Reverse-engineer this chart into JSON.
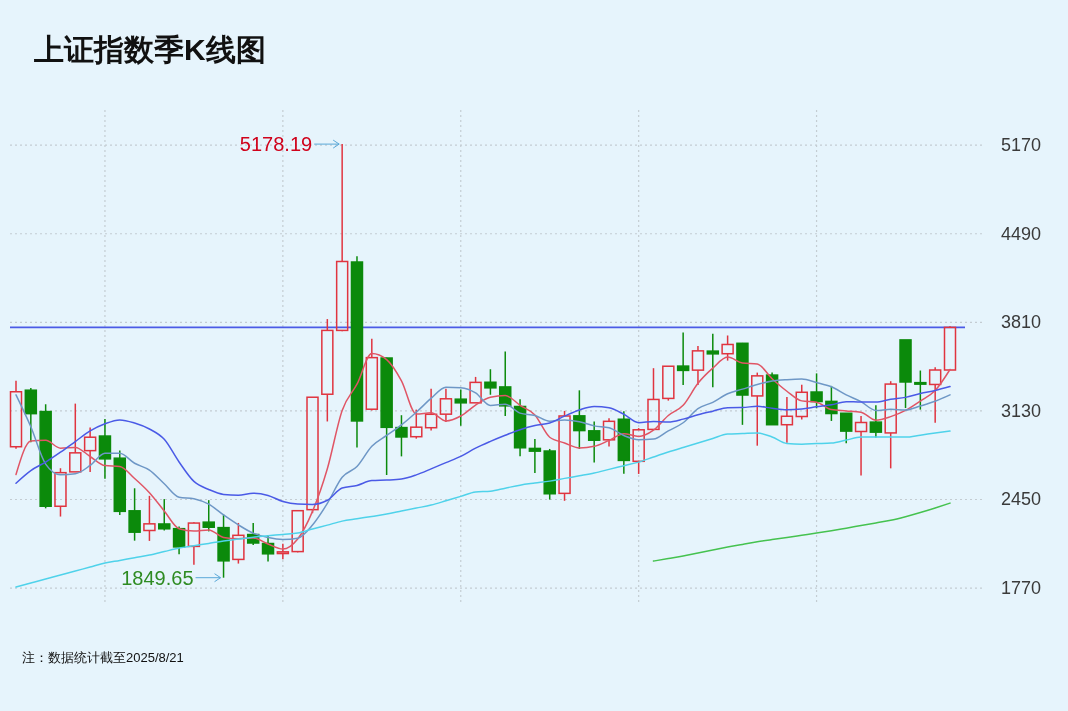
{
  "chart_data": {
    "type": "candlestick",
    "title": "上证指数季K线图",
    "categories": [
      null,
      null,
      null,
      null,
      null,
      null,
      null,
      null,
      null,
      null,
      null,
      null,
      null,
      null,
      null,
      null,
      null,
      null,
      null,
      null,
      null,
      null,
      null,
      null,
      null,
      null,
      null,
      null,
      null,
      null,
      null,
      null,
      null,
      null,
      null,
      null,
      null,
      null,
      null,
      null,
      null,
      null,
      null,
      null,
      null,
      null,
      null,
      null,
      null,
      null,
      null,
      null,
      null,
      null,
      null,
      null,
      null,
      null,
      null,
      null,
      null,
      null,
      null,
      null
    ],
    "ohlc": [
      [
        2855,
        3361,
        2840,
        3277
      ],
      [
        3289,
        3306,
        2890,
        3109
      ],
      [
        3125,
        3181,
        2382,
        2398
      ],
      [
        2398,
        2690,
        2319,
        2656
      ],
      [
        2662,
        3186,
        2662,
        2808
      ],
      [
        2825,
        3002,
        2661,
        2928
      ],
      [
        2937,
        3067,
        2610,
        2762
      ],
      [
        2767,
        2826,
        2331,
        2359
      ],
      [
        2363,
        2536,
        2134,
        2199
      ],
      [
        2212,
        2478,
        2132,
        2263
      ],
      [
        2262,
        2453,
        2212,
        2225
      ],
      [
        2226,
        2243,
        2029,
        2086
      ],
      [
        2090,
        2275,
        1949,
        2269
      ],
      [
        2276,
        2445,
        2205,
        2237
      ],
      [
        2234,
        2334,
        1849.65,
        1979
      ],
      [
        1990,
        2270,
        1958,
        2175
      ],
      [
        2181,
        2270,
        2100,
        2116
      ],
      [
        2112,
        2178,
        1974,
        2033
      ],
      [
        2035,
        2110,
        1991,
        2048
      ],
      [
        2050,
        2368,
        2044,
        2364
      ],
      [
        2372,
        3235,
        2345,
        3235
      ],
      [
        3258,
        3835,
        3049,
        3748
      ],
      [
        3748,
        5178.19,
        3742,
        4277
      ],
      [
        4273,
        4317,
        2850,
        3053
      ],
      [
        3143,
        3684,
        3133,
        3539
      ],
      [
        3536,
        3539,
        2638,
        3004
      ],
      [
        3002,
        3097,
        2781,
        2930
      ],
      [
        2932,
        3140,
        2917,
        3005
      ],
      [
        3001,
        3301,
        2980,
        3104
      ],
      [
        3105,
        3301,
        3044,
        3223
      ],
      [
        3220,
        3295,
        3016,
        3192
      ],
      [
        3192,
        3391,
        3192,
        3349
      ],
      [
        3350,
        3450,
        3254,
        3307
      ],
      [
        3314,
        3587,
        3091,
        3169
      ],
      [
        3164,
        3220,
        2782,
        2847
      ],
      [
        2842,
        2915,
        2653,
        2821
      ],
      [
        2822,
        2838,
        2449,
        2494
      ],
      [
        2497,
        3130,
        2440,
        3091
      ],
      [
        3092,
        3288,
        2838,
        2979
      ],
      [
        2977,
        3048,
        2733,
        2905
      ],
      [
        2908,
        3074,
        2857,
        3050
      ],
      [
        3066,
        3127,
        2647,
        2750
      ],
      [
        2743,
        2998,
        2646,
        2985
      ],
      [
        2988,
        3458,
        2984,
        3218
      ],
      [
        3226,
        3474,
        3209,
        3473
      ],
      [
        3474,
        3731,
        3329,
        3441
      ],
      [
        3443,
        3629,
        3328,
        3591
      ],
      [
        3589,
        3723,
        3312,
        3568
      ],
      [
        3569,
        3709,
        3516,
        3640
      ],
      [
        3649,
        3652,
        3023,
        3252
      ],
      [
        3245,
        3424,
        2863,
        3399
      ],
      [
        3405,
        3424,
        3021,
        3024
      ],
      [
        3024,
        3237,
        2886,
        3089
      ],
      [
        3087,
        3331,
        3064,
        3273
      ],
      [
        3275,
        3418,
        3150,
        3202
      ],
      [
        3203,
        3322,
        3053,
        3110
      ],
      [
        3112,
        3113,
        2882,
        2975
      ],
      [
        2972,
        3090,
        2635,
        3041
      ],
      [
        3044,
        3174,
        2925,
        2967
      ],
      [
        2961,
        3358,
        2689,
        3336
      ],
      [
        3675,
        3675,
        3152,
        3352
      ],
      [
        3347,
        3440,
        3140,
        3336
      ],
      [
        3333,
        3466,
        3040,
        3444
      ],
      [
        3444,
        3780,
        3444,
        3771
      ]
    ],
    "series": [
      {
        "type": "line",
        "color": "#e05565",
        "values": [
          2642,
          2899,
          2904,
          2844,
          2850,
          2780,
          2710,
          2703,
          2611,
          2502,
          2362,
          2226,
          2208,
          2216,
          2159,
          2149,
          2155,
          2108,
          2070,
          2147,
          2359,
          2686,
          3134,
          3335,
          3570,
          3524,
          3361,
          3106,
          3116,
          3053,
          3091,
          3175,
          3235,
          3248,
          3173,
          3099,
          2928,
          2884,
          2846,
          2858,
          2904,
          2955,
          2934,
          2982,
          3095,
          3173,
          3342,
          3458,
          3543,
          3498,
          3490,
          3377,
          3281,
          3207,
          3197,
          3140,
          3130,
          3120,
          3059,
          3086,
          3134,
          3206,
          3287,
          3448
        ]
      },
      {
        "type": "line",
        "color": "#6e97c6",
        "values": [
          3253,
          3008,
          2722,
          2640,
          2647,
          2711,
          2805,
          2804,
          2728,
          2676,
          2571,
          2468,
          2456,
          2414,
          2331,
          2255,
          2191,
          2158,
          2143,
          2153,
          2254,
          2420,
          2621,
          2703,
          2859,
          2942,
          3023,
          3120,
          3226,
          3312,
          3308,
          3268,
          3171,
          3182,
          3113,
          3095,
          3051,
          3060,
          3047,
          3015,
          3001,
          2941,
          2909,
          2914,
          2977,
          3039,
          3148,
          3196,
          3262,
          3297,
          3332,
          3359,
          3370,
          3375,
          3348,
          3315,
          3253,
          3201,
          3133,
          3142,
          3137,
          3168,
          3204,
          3253
        ]
      },
      {
        "type": "line",
        "color": "#4a5ae6",
        "values": [
          2575,
          2672,
          2737,
          2813,
          2895,
          2976,
          3031,
          3061,
          3037,
          2991,
          2912,
          2738,
          2589,
          2527,
          2489,
          2483,
          2498,
          2481,
          2435,
          2415,
          2412,
          2444,
          2538,
          2558,
          2595,
          2599,
          2607,
          2639,
          2685,
          2733,
          2781,
          2844,
          2896,
          2943,
          2986,
          3018,
          3037,
          3090,
          3137,
          3164,
          3154,
          3104,
          3040,
          3048,
          3045,
          3067,
          3100,
          3128,
          3155,
          3156,
          3166,
          3150,
          3139,
          3145,
          3162,
          3177,
          3201,
          3198,
          3198,
          3219,
          3234,
          3264,
          3287,
          3317
        ]
      },
      {
        "type": "line",
        "color": "#4fd2ea",
        "values": [
          1778,
          1809,
          1840,
          1870,
          1901,
          1931,
          1962,
          1982,
          2003,
          2023,
          2050,
          2077,
          2095,
          2113,
          2131,
          2146,
          2161,
          2171,
          2182,
          2192,
          2223,
          2253,
          2284,
          2302,
          2320,
          2338,
          2361,
          2384,
          2407,
          2440,
          2474,
          2507,
          2514,
          2537,
          2560,
          2576,
          2591,
          2612,
          2632,
          2653,
          2681,
          2709,
          2737,
          2776,
          2814,
          2849,
          2883,
          2918,
          2952,
          2956,
          2960,
          2930,
          2880,
          2875,
          2879,
          2883,
          2906,
          2929,
          2929,
          2929,
          2929,
          2944,
          2960,
          2975
        ]
      },
      {
        "type": "line",
        "color": "#45c24f",
        "values": [
          null,
          null,
          null,
          null,
          null,
          null,
          null,
          null,
          null,
          null,
          null,
          null,
          null,
          null,
          null,
          null,
          null,
          null,
          null,
          null,
          null,
          null,
          null,
          null,
          null,
          null,
          null,
          null,
          null,
          null,
          null,
          null,
          null,
          null,
          null,
          null,
          null,
          null,
          null,
          null,
          null,
          null,
          null,
          1977,
          1997,
          2017,
          2040,
          2062,
          2085,
          2105,
          2125,
          2142,
          2158,
          2175,
          2192,
          2210,
          2230,
          2250,
          2270,
          2290,
          2318,
          2350,
          2385,
          2422
        ]
      }
    ],
    "ylim": [
      1640,
      5440
    ],
    "yticks": [
      1770,
      2450,
      3130,
      3810,
      4490,
      5170
    ],
    "tick_labels": "y",
    "grid": true,
    "ref_lines": [
      {
        "axis": "y",
        "value": 3771,
        "color": "#4a5ae6"
      }
    ],
    "annotations": [
      "5178.19",
      "1849.65",
      "注：数据统计截至2025/8/21"
    ]
  }
}
